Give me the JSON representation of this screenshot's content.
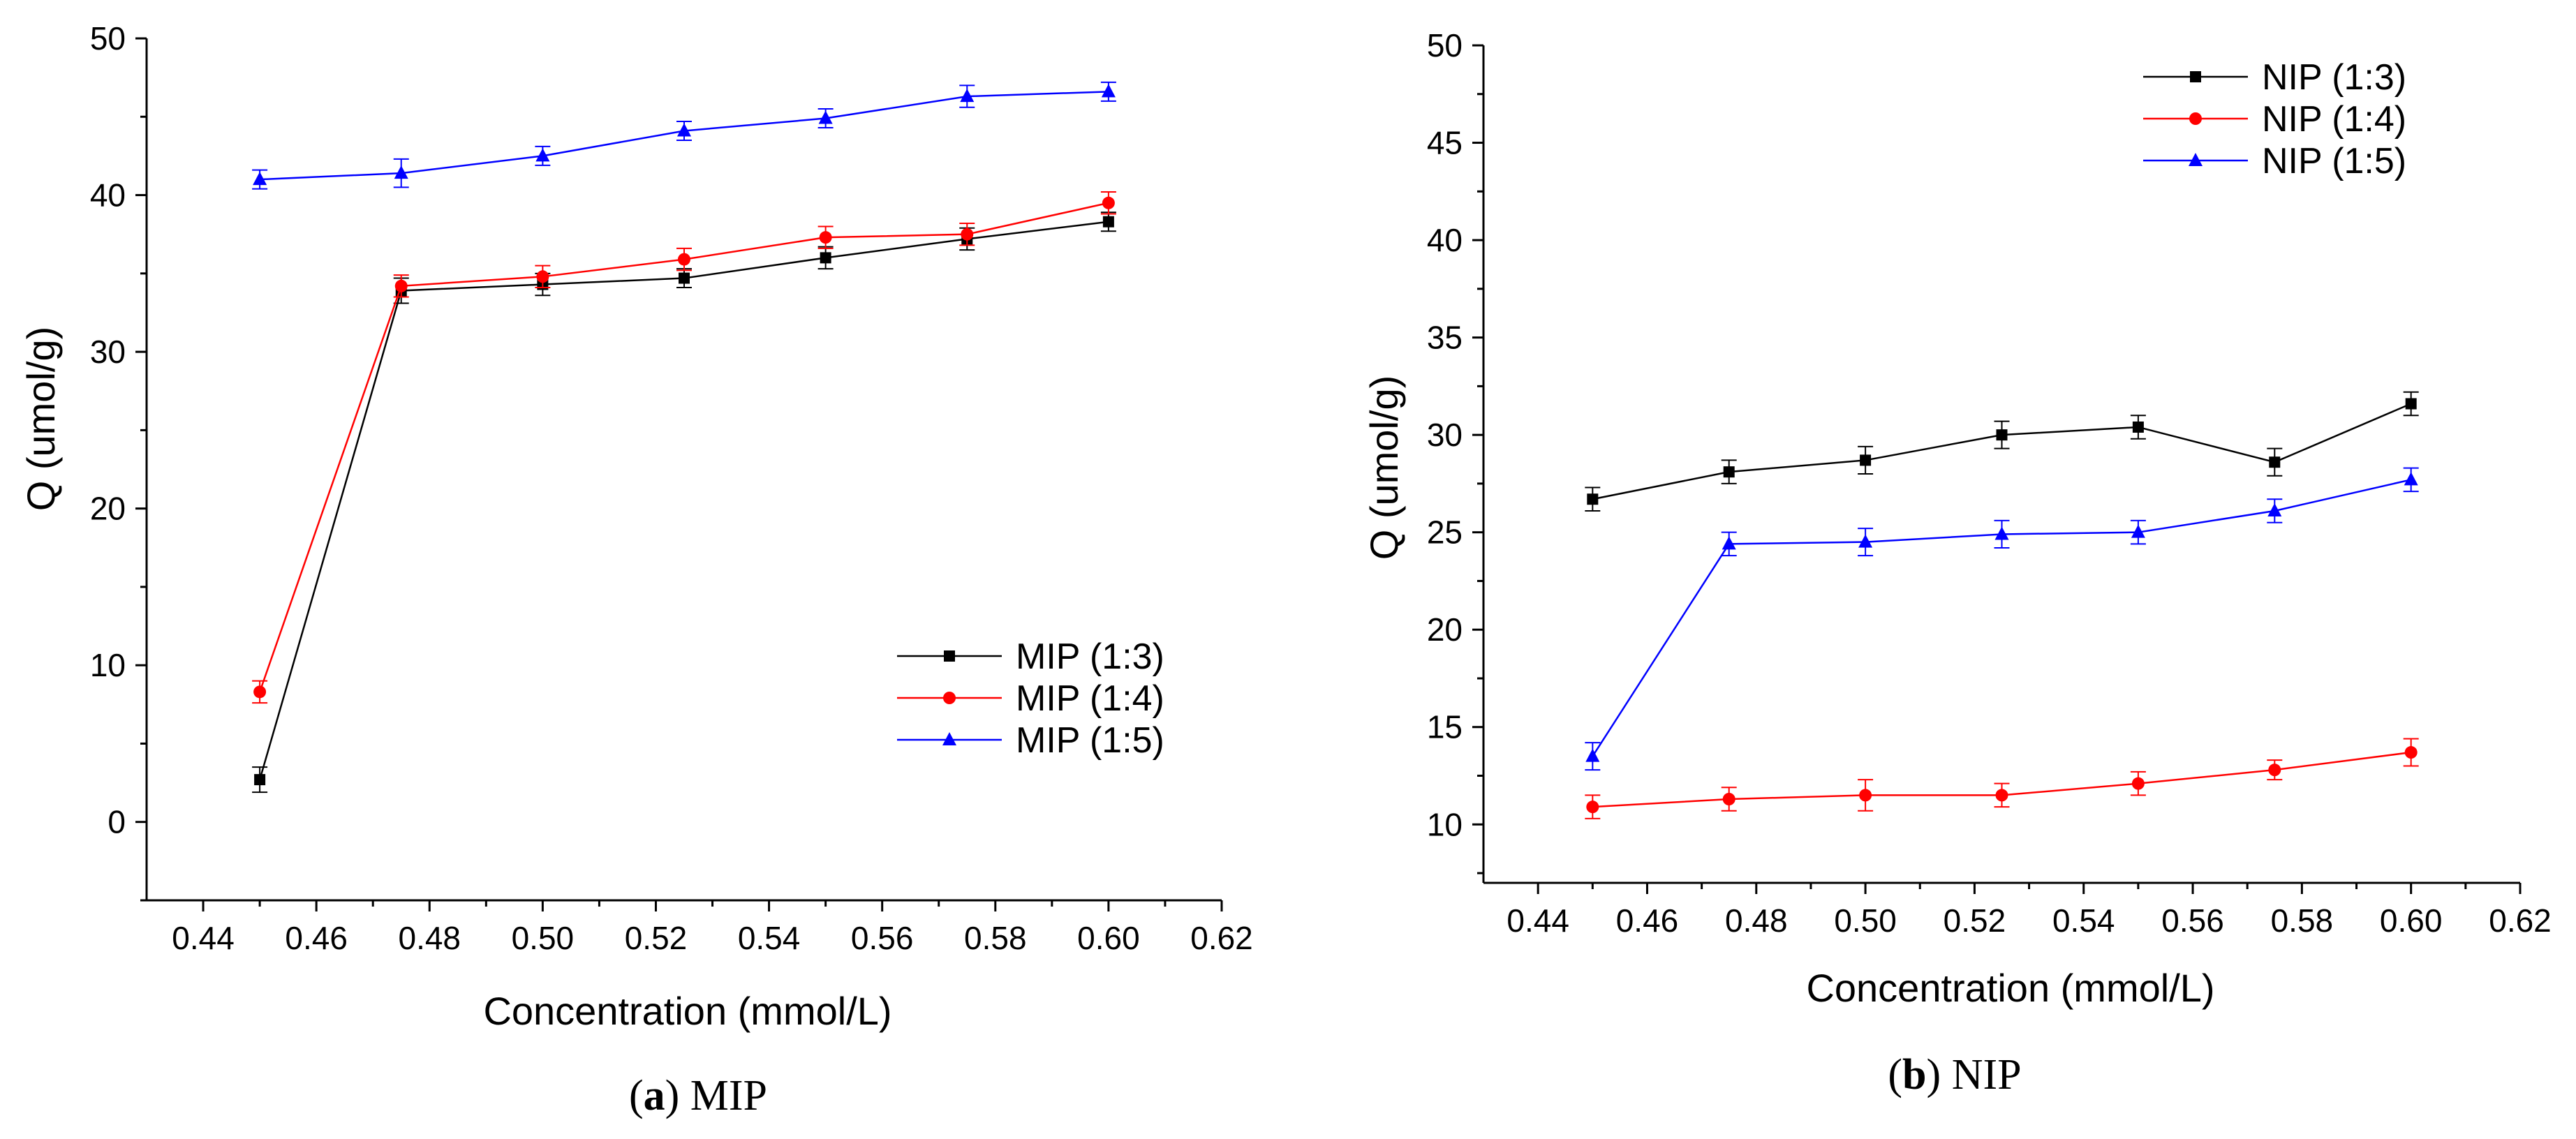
{
  "chart_data": [
    {
      "type": "line",
      "panel": "a",
      "caption_label": "a",
      "caption_text": "MIP",
      "xlabel": "Concentration (mmol/L)",
      "ylabel": "Q (umol/g)",
      "xlim": [
        0.43,
        0.62
      ],
      "ylim": [
        -5,
        50
      ],
      "xticks": [
        0.44,
        0.46,
        0.48,
        0.5,
        0.52,
        0.54,
        0.56,
        0.58,
        0.6,
        0.62
      ],
      "xtick_labels": [
        "0.44",
        "0.46",
        "0.48",
        "0.50",
        "0.52",
        "0.54",
        "0.56",
        "0.58",
        "0.60",
        "0.62"
      ],
      "yticks": [
        0,
        10,
        20,
        30,
        40,
        50
      ],
      "ytick_labels": [
        "0",
        "10",
        "20",
        "30",
        "40",
        "50"
      ],
      "legend_position": "lower-right",
      "x": [
        0.45,
        0.475,
        0.5,
        0.525,
        0.55,
        0.575,
        0.6
      ],
      "series": [
        {
          "name": "MIP (1:3)",
          "color": "#000000",
          "marker": "square",
          "values": [
            2.7,
            33.9,
            34.3,
            34.7,
            36.0,
            37.2,
            38.3
          ],
          "errors": [
            0.8,
            0.8,
            0.7,
            0.6,
            0.7,
            0.7,
            0.6
          ]
        },
        {
          "name": "MIP (1:4)",
          "color": "#ff0000",
          "marker": "circle",
          "values": [
            8.3,
            34.2,
            34.8,
            35.9,
            37.3,
            37.5,
            39.5
          ],
          "errors": [
            0.7,
            0.7,
            0.7,
            0.7,
            0.7,
            0.7,
            0.7
          ]
        },
        {
          "name": "MIP (1:5)",
          "color": "#0000ff",
          "marker": "triangle",
          "values": [
            41.0,
            41.4,
            42.5,
            44.1,
            44.9,
            46.3,
            46.6
          ],
          "errors": [
            0.6,
            0.9,
            0.6,
            0.6,
            0.6,
            0.7,
            0.6
          ]
        }
      ]
    },
    {
      "type": "line",
      "panel": "b",
      "caption_label": "b",
      "caption_text": "NIP",
      "xlabel": "Concentration (mmol/L)",
      "ylabel": "Q (umol/g)",
      "xlim": [
        0.43,
        0.62
      ],
      "ylim": [
        7,
        50
      ],
      "xticks": [
        0.44,
        0.46,
        0.48,
        0.5,
        0.52,
        0.54,
        0.56,
        0.58,
        0.6,
        0.62
      ],
      "xtick_labels": [
        "0.44",
        "0.46",
        "0.48",
        "0.50",
        "0.52",
        "0.54",
        "0.56",
        "0.58",
        "0.60",
        "0.62"
      ],
      "yticks": [
        10,
        15,
        20,
        25,
        30,
        35,
        40,
        45,
        50
      ],
      "ytick_labels": [
        "10",
        "15",
        "20",
        "25",
        "30",
        "35",
        "40",
        "45",
        "50"
      ],
      "legend_position": "top-right",
      "x": [
        0.45,
        0.475,
        0.5,
        0.525,
        0.55,
        0.575,
        0.6
      ],
      "series": [
        {
          "name": "NIP (1:3)",
          "color": "#000000",
          "marker": "square",
          "values": [
            26.7,
            28.1,
            28.7,
            30.0,
            30.4,
            28.6,
            31.6
          ],
          "errors": [
            0.6,
            0.6,
            0.7,
            0.7,
            0.6,
            0.7,
            0.6
          ]
        },
        {
          "name": "NIP (1:4)",
          "color": "#ff0000",
          "marker": "circle",
          "values": [
            10.9,
            11.3,
            11.5,
            11.5,
            12.1,
            12.8,
            13.7
          ],
          "errors": [
            0.6,
            0.6,
            0.8,
            0.6,
            0.6,
            0.5,
            0.7
          ]
        },
        {
          "name": "NIP (1:5)",
          "color": "#0000ff",
          "marker": "triangle",
          "values": [
            13.5,
            24.4,
            24.5,
            24.9,
            25.0,
            26.1,
            27.7
          ],
          "errors": [
            0.7,
            0.6,
            0.7,
            0.7,
            0.6,
            0.6,
            0.6
          ]
        }
      ]
    }
  ]
}
